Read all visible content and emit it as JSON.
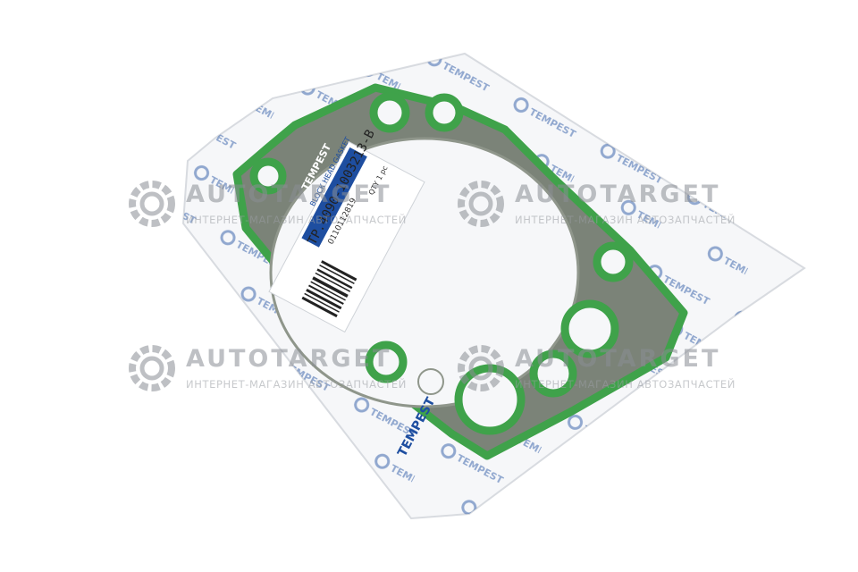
{
  "product": {
    "brand_text": "TEMPEST",
    "label_brand": "TEMPEST",
    "part_number": "TP.4090-1003213-B",
    "item_name": "BLOCK HEAD GASKET",
    "barcode_number": "0110112819",
    "qty_text": "QTY 1 pc"
  },
  "watermark": {
    "brand": "AUTOTARGET",
    "tagline": "ИНТЕРНЕТ-МАГАЗИН АВТОЗАПЧАСТЕЙ"
  },
  "colors": {
    "gasket_green": "#3fa24a",
    "gasket_steel": "#7b8378",
    "logo_blue": "#1e4ea0",
    "watermark_grey": "#8a8e94"
  }
}
